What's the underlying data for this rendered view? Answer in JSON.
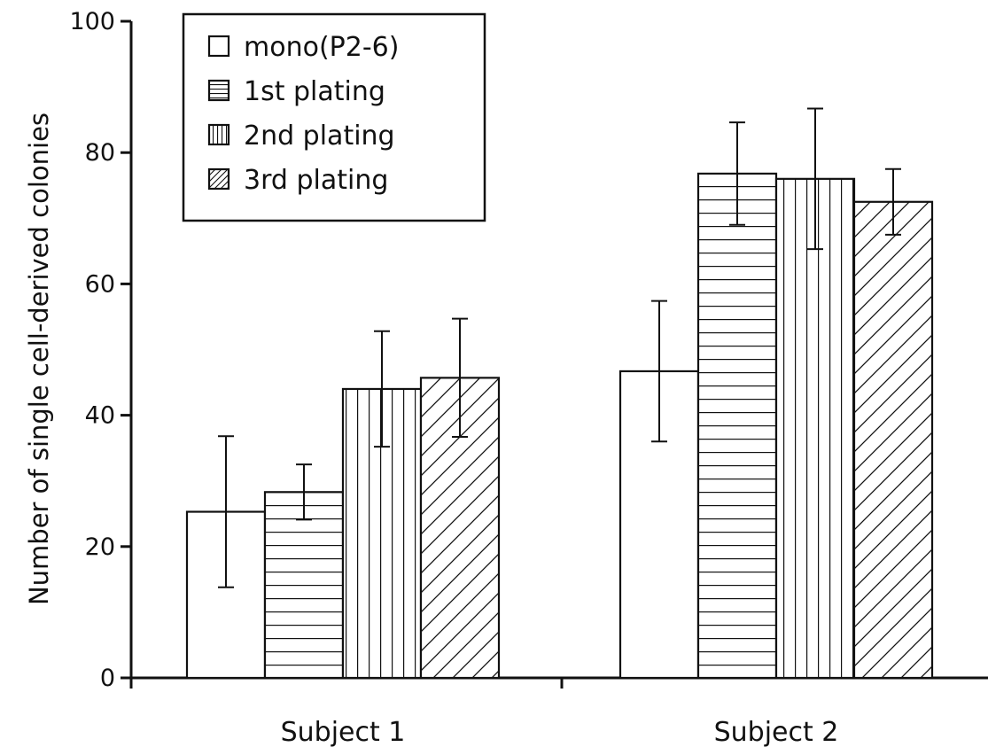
{
  "chart_data": {
    "type": "bar",
    "ylabel": "Number of single cell-derived colonies",
    "xlabel": "",
    "ylim": [
      0,
      100
    ],
    "yticks": [
      0,
      20,
      40,
      60,
      80,
      100
    ],
    "categories": [
      "Subject 1",
      "Subject 2"
    ],
    "legend_position": "top-left",
    "grid": false,
    "series": [
      {
        "name": "mono(P2-6)",
        "pattern": "none",
        "values": [
          25.3,
          46.7
        ],
        "errors": [
          11.5,
          10.7
        ]
      },
      {
        "name": "1st plating",
        "pattern": "horizontal",
        "values": [
          28.3,
          76.8
        ],
        "errors": [
          4.2,
          7.8
        ]
      },
      {
        "name": "2nd plating",
        "pattern": "vertical",
        "values": [
          44.0,
          76.0
        ],
        "errors": [
          8.8,
          10.7
        ]
      },
      {
        "name": "3rd plating",
        "pattern": "diagonal",
        "values": [
          45.7,
          72.5
        ],
        "errors": [
          9.0,
          5.0
        ]
      }
    ]
  },
  "colors": {
    "ink": "#111111",
    "background": "#ffffff"
  }
}
